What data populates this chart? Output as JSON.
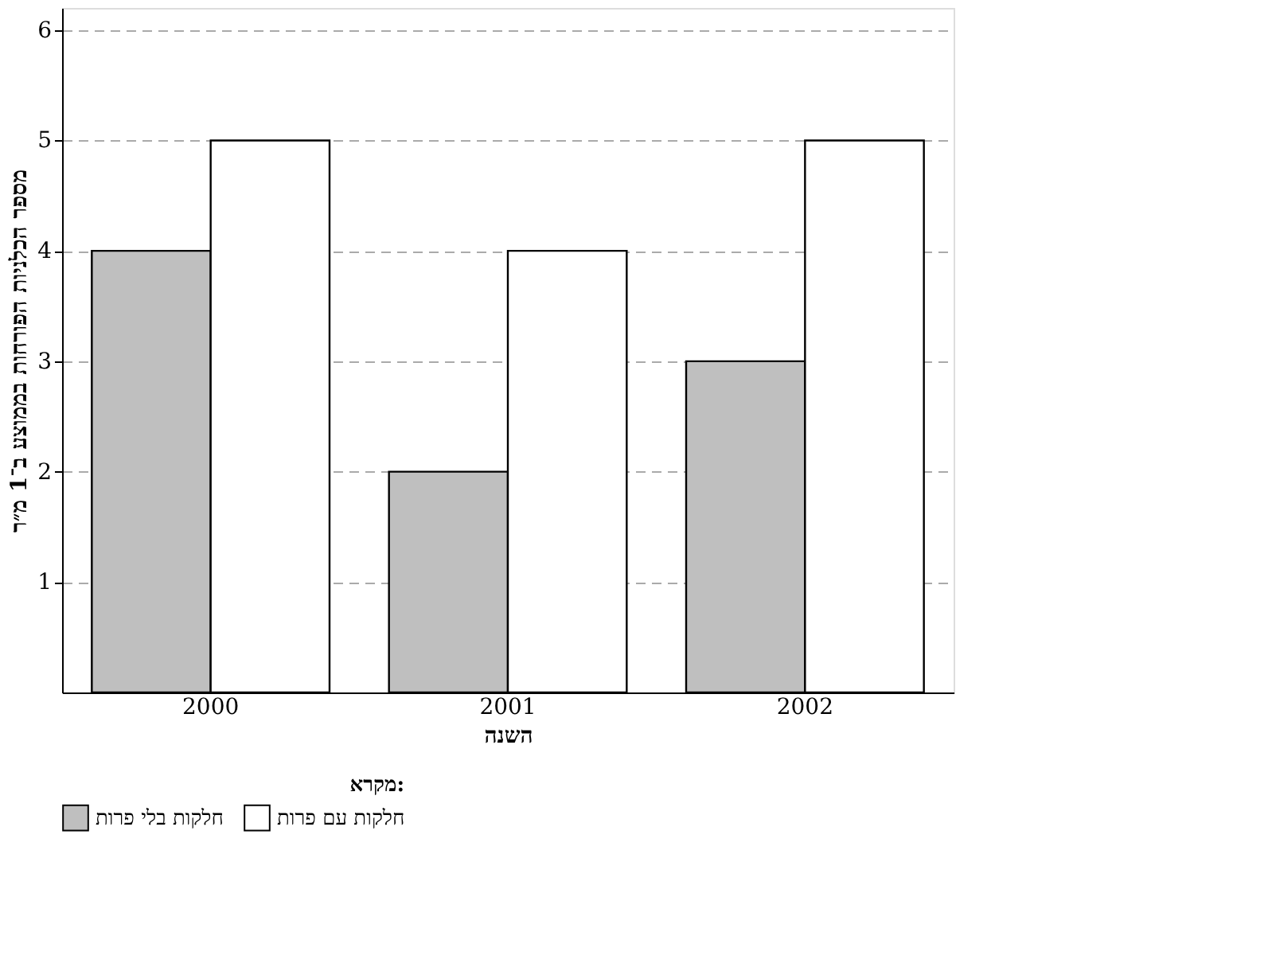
{
  "chart_data": {
    "type": "bar",
    "xlabel": "השנה",
    "ylabel": "מספר הכלניות הפורחות בממוצע ב־1 מ״ר",
    "legend_title": "מקרא:",
    "categories": [
      "2000",
      "2001",
      "2002"
    ],
    "series": [
      {
        "name": "חלקות בלי פרות",
        "color": "#bfbfbf",
        "values": [
          4,
          2,
          3
        ]
      },
      {
        "name": "חלקות עם פרות",
        "color": "#ffffff",
        "values": [
          5,
          4,
          5
        ]
      }
    ],
    "ylim": [
      0,
      6.2
    ],
    "yticks": [
      1,
      2,
      3,
      4,
      5,
      6
    ],
    "grid": "y",
    "legend": "bottom"
  }
}
